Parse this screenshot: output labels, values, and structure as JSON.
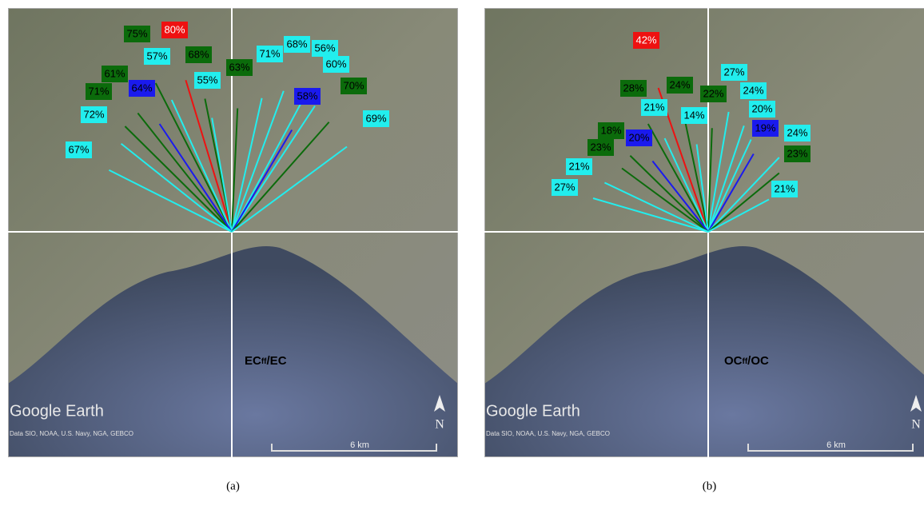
{
  "panels": [
    {
      "labels": [
        "75%",
        "80%",
        "57%",
        "68%",
        "63%",
        "55%",
        "61%",
        "71%",
        "64%",
        "72%",
        "67%",
        "71%",
        "68%",
        "56%",
        "60%",
        "58%",
        "70%",
        "69%"
      ],
      "ratio": {
        "main": "EC",
        "sub": "ff",
        "rest": "/EC"
      },
      "watermark": "Google Earth",
      "attribution": "Data SIO, NOAA, U.S. Navy, NGA, GEBCO",
      "scale": "6 km",
      "north": "N",
      "caption": "(a)"
    },
    {
      "labels": [
        "42%",
        "27%",
        "28%",
        "24%",
        "22%",
        "24%",
        "21%",
        "14%",
        "20%",
        "18%",
        "20%",
        "19%",
        "24%",
        "23%",
        "23%",
        "21%",
        "27%",
        "21%"
      ],
      "ratio": {
        "main": "OC",
        "sub": "ff",
        "rest": "/OC"
      },
      "watermark": "Google Earth",
      "attribution": "Data SIO, NOAA, U.S. Navy, NGA, GEBCO",
      "scale": "6 km",
      "north": "N",
      "caption": "(b)"
    }
  ]
}
